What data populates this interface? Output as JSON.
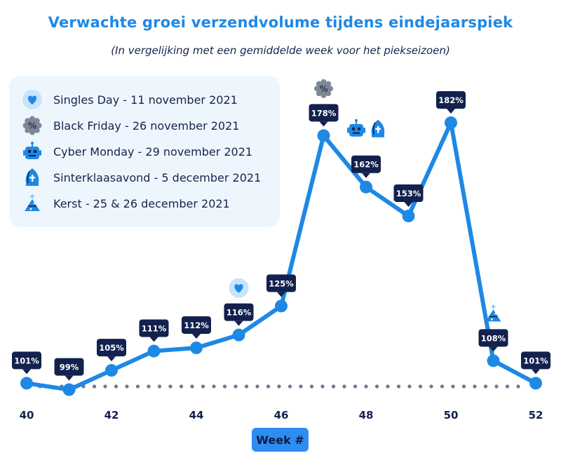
{
  "title": "Verwachte groei verzendvolume tijdens eindejaarspiek",
  "subtitle": "(In vergelijking met een gemiddelde week voor het piekseizoen)",
  "legend": [
    {
      "icon": "heart-icon",
      "label": "Singles Day - 11 november 2021"
    },
    {
      "icon": "percent-badge-icon",
      "label": "Black Friday - 26 november 2021"
    },
    {
      "icon": "robot-icon",
      "label": "Cyber Monday - 29 november 2021"
    },
    {
      "icon": "sinterklaas-mitre-icon",
      "label": "Sinterklaasavond - 5 december 2021"
    },
    {
      "icon": "christmas-tree-icon",
      "label": "Kerst - 25 & 26 december 2021"
    }
  ],
  "x_axis_button": "Week #",
  "colors": {
    "line": "#1e88e5",
    "label_bg": "#12214d",
    "baseline_dots": "#6e7891",
    "title": "#1e88e5",
    "legend_bg": "#eef6fd",
    "icon_grey": "#7f8797"
  },
  "chart_data": {
    "type": "line",
    "title": "Verwachte groei verzendvolume tijdens eindejaarspiek",
    "subtitle": "(In vergelijking met een gemiddelde week voor het piekseizoen)",
    "xlabel": "Week #",
    "ylabel": "",
    "x": [
      40,
      41,
      42,
      43,
      44,
      45,
      46,
      47,
      48,
      49,
      50,
      51,
      52
    ],
    "values": [
      101,
      99,
      105,
      111,
      112,
      116,
      125,
      178,
      162,
      153,
      182,
      108,
      101
    ],
    "data_labels": [
      "101%",
      "99%",
      "105%",
      "111%",
      "112%",
      "116%",
      "125%",
      "178%",
      "162%",
      "153%",
      "182%",
      "108%",
      "101%"
    ],
    "x_ticks": [
      "40",
      "42",
      "44",
      "46",
      "48",
      "50",
      "52"
    ],
    "baseline": 100,
    "grid": false,
    "legend_position": "top-left",
    "events": [
      {
        "week": 45,
        "icon": "heart-icon"
      },
      {
        "week": 47,
        "icon": "percent-badge-icon"
      },
      {
        "week": 48,
        "icon": "robot-icon"
      },
      {
        "week": 48,
        "icon": "sinterklaas-mitre-icon"
      },
      {
        "week": 51,
        "icon": "christmas-tree-icon"
      }
    ]
  }
}
